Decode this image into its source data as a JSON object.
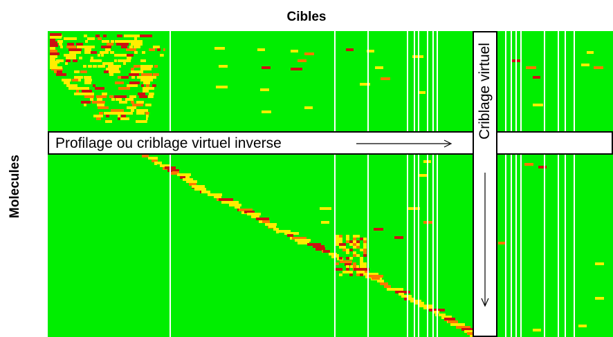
{
  "figure": {
    "title_top": "Cibles",
    "title_left": "Molecules",
    "row_band_label": "Profilage ou criblage virtuel inverse",
    "column_band_label": "Criblage virtuel"
  },
  "colors": {
    "background": "#00ee00",
    "high": "#cc1111",
    "medium": "#ff7700",
    "low": "#ffee00",
    "gap": "#ffffff"
  }
}
